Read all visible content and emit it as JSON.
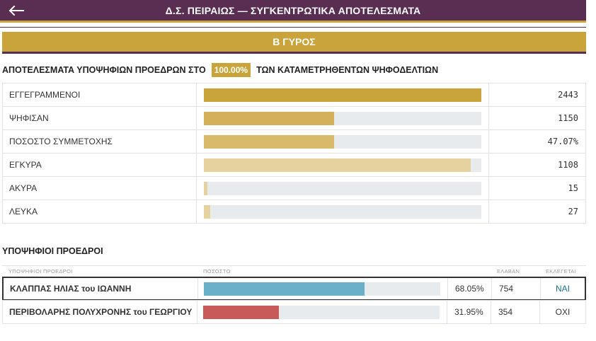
{
  "header": {
    "title": "Δ.Σ. ΠΕΙΡΑΙΩΣ — ΣΥΓΚΕΝΤΡΩΤΙΚΑ ΑΠΟΤΕΛΕΣΜΑΤΑ",
    "back_icon": "arrow-left-icon"
  },
  "round": {
    "label": "Β ΓΥΡΟΣ"
  },
  "results_heading": {
    "prefix": "ΑΠΟΤΕΛΕΣΜΑΤΑ ΥΠΟΨΗΦΙΩΝ ΠΡΟΕΔΡΩΝ ΣΤΟ",
    "percent": "100.00%",
    "suffix": "ΤΩΝ ΚΑΤΑΜΕΤΡΗΘΕΝΤΩΝ ΨΗΦΟΔΕΛΤΙΩΝ"
  },
  "stats": [
    {
      "label": "ΕΓΓΕΓΡΑΜΜΕΝΟΙ",
      "value": "2443",
      "fill": 1.0,
      "color": "#c9a43a"
    },
    {
      "label": "ΨΗΦΙΣΑΝ",
      "value": "1150",
      "fill": 0.4707,
      "color": "#d4b05a"
    },
    {
      "label": "ΠΟΣΟΣΤΟ ΣΥΜΜΕΤΟΧΗΣ",
      "value": "47.07%",
      "fill": 0.4707,
      "color": "#d9ba6a"
    },
    {
      "label": "ΕΓΚΥΡΑ",
      "value": "1108",
      "fill": 0.9635,
      "color": "#e6d29e"
    },
    {
      "label": "ΑΚΥΡΑ",
      "value": "15",
      "fill": 0.013,
      "color": "#e6d29e"
    },
    {
      "label": "ΛΕΥΚΑ",
      "value": "27",
      "fill": 0.0235,
      "color": "#e6d29e"
    }
  ],
  "candidates_section": {
    "heading": "ΥΠΟΨΗΦΙΟΙ ΠΡΟΕΔΡΟΙ",
    "columns": {
      "name": "ΥΠΟΨΗΦΙΟΙ ΠΡΟΕΔΡΟΙ",
      "percent": "ΠΟΣΟΣΤΟ",
      "votes": "ΕΛΑΒΑΝ",
      "elected": "ΕΚΛΕΓΕΤΑΙ"
    },
    "candidates": [
      {
        "name": "ΚΛΑΠΠΑΣ ΗΛΙΑΣ του ΙΩΑΝΝΗ",
        "percent": "68.05%",
        "share": 0.6805,
        "votes": "754",
        "elected": "ΝΑΙ",
        "color": "#6ab0c8"
      },
      {
        "name": "ΠΕΡΙΒΟΛΑΡΗΣ ΠΟΛΥΧΡΟΝΗΣ του ΓΕΩΡΓΙΟΥ",
        "percent": "31.95%",
        "share": 0.3195,
        "votes": "354",
        "elected": "ΟΧΙ",
        "color": "#c85a5a"
      }
    ]
  }
}
